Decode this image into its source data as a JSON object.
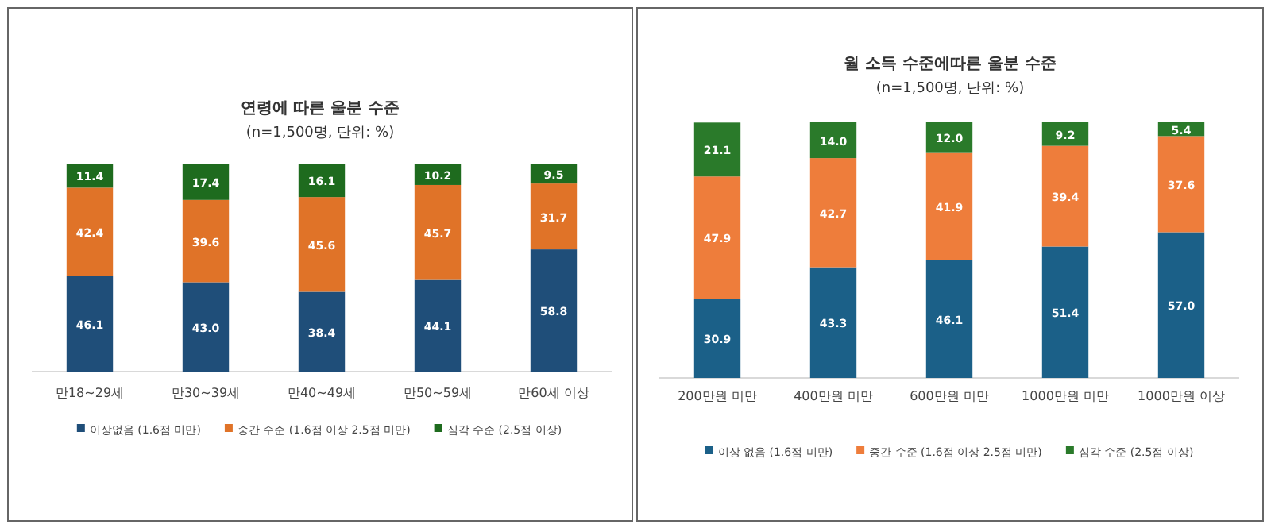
{
  "chart_data": [
    {
      "type": "bar",
      "stacked": true,
      "title": "연령에 따른 울분 수준",
      "subtitle": "(n=1,500명, 단위: %)",
      "categories": [
        "만18~29세",
        "만30~39세",
        "만40~49세",
        "만50~59세",
        "만60세 이상"
      ],
      "legend": "bottom",
      "series": [
        {
          "name": "이상없음 (1.6점 미만)",
          "color": "#1f4e79",
          "values": [
            46.1,
            43.0,
            38.4,
            44.1,
            58.8
          ],
          "value_labels": [
            "46.1",
            "43.0",
            "38.4",
            "44.1",
            "58.8"
          ]
        },
        {
          "name": "중간 수준 (1.6점 이상 2.5점 미만)",
          "color": "#e07328",
          "values": [
            42.4,
            39.6,
            45.6,
            45.7,
            31.7
          ],
          "value_labels": [
            "42.4",
            "39.6",
            "45.6",
            "45.7",
            "31.7"
          ]
        },
        {
          "name": "심각 수준 (2.5점 이상)",
          "color": "#1e6b1e",
          "values": [
            11.4,
            17.4,
            16.1,
            10.2,
            9.5
          ],
          "value_labels": [
            "11.4",
            "17.4",
            "16.1",
            "10.2",
            "9.5"
          ]
        }
      ]
    },
    {
      "type": "bar",
      "stacked": true,
      "title": "월 소득 수준에따른 울분 수준",
      "subtitle": "(n=1,500명, 단위: %)",
      "categories": [
        "200만원 미만",
        "400만원 미만",
        "600만원 미만",
        "1000만원 미만",
        "1000만원 이상"
      ],
      "legend": "bottom",
      "series": [
        {
          "name": "이상 없음 (1.6점 미만)",
          "color": "#1b6088",
          "values": [
            30.9,
            43.3,
            46.1,
            51.4,
            57.0
          ],
          "value_labels": [
            "30.9",
            "43.3",
            "46.1",
            "51.4",
            "57.0"
          ]
        },
        {
          "name": "중간 수준 (1.6점 이상 2.5점 미만)",
          "color": "#ee7d3b",
          "values": [
            47.9,
            42.7,
            41.9,
            39.4,
            37.6
          ],
          "value_labels": [
            "47.9",
            "42.7",
            "41.9",
            "39.4",
            "37.6"
          ]
        },
        {
          "name": "심각 수준 (2.5점 이상)",
          "color": "#2a7a2a",
          "values": [
            21.1,
            14.0,
            12.0,
            9.2,
            5.4
          ],
          "value_labels": [
            "21.1",
            "14.0",
            "12.0",
            "9.2",
            "5.4"
          ]
        }
      ]
    }
  ]
}
